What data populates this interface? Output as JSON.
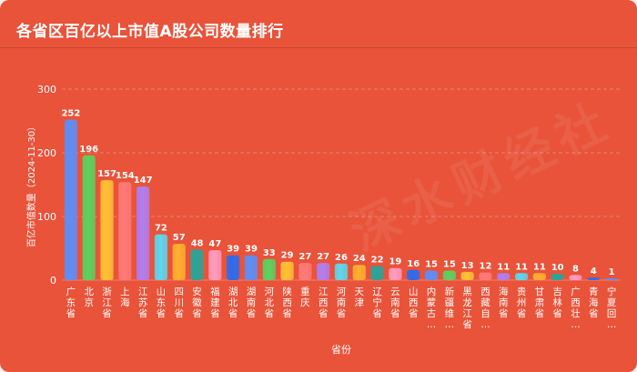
{
  "header": {
    "title": "各省区百亿以上市值A股公司数量排行"
  },
  "watermark": "深水财经社",
  "chart_data": {
    "type": "bar",
    "xlabel": "省份",
    "ylabel": "百亿市值数量（2024-11-30）",
    "ylim": [
      0,
      300
    ],
    "yticks": [
      0,
      100,
      200,
      300
    ],
    "grid": true,
    "categories": [
      "广东省",
      "北京",
      "浙江省",
      "上海",
      "江苏省",
      "山东省",
      "四川省",
      "安徽省",
      "福建省",
      "湖北省",
      "湖南省",
      "河北省",
      "陕西省",
      "重庆",
      "江西省",
      "河南省",
      "天津",
      "辽宁省",
      "云南省",
      "山西省",
      "内蒙古...",
      "新疆维...",
      "黑龙江省",
      "西藏自...",
      "海南省",
      "贵州省",
      "甘肃省",
      "吉林省",
      "广西壮...",
      "青海省",
      "宁夏回..."
    ],
    "values": [
      252,
      196,
      157,
      154,
      147,
      72,
      57,
      48,
      47,
      39,
      39,
      33,
      29,
      27,
      27,
      26,
      24,
      22,
      19,
      16,
      15,
      15,
      13,
      12,
      11,
      11,
      11,
      10,
      8,
      4,
      1
    ],
    "colors": [
      "#5b8ff9",
      "#5ad35f",
      "#ffc233",
      "#ff7a78",
      "#b07ef2",
      "#5bd8f0",
      "#ffb02e",
      "#26a69a",
      "#ff9cc0",
      "#2c6bf0",
      "#5b8ff9",
      "#5ad35f",
      "#ffc233",
      "#ff7a78",
      "#b07ef2",
      "#5bd8f0",
      "#ffb02e",
      "#26a69a",
      "#ff9cc0",
      "#2c6bf0",
      "#5b8ff9",
      "#5ad35f",
      "#ffc233",
      "#ff7a78",
      "#b07ef2",
      "#5bd8f0",
      "#ffb02e",
      "#26a69a",
      "#ff9cc0",
      "#2c6bf0",
      "#5b8ff9"
    ]
  }
}
